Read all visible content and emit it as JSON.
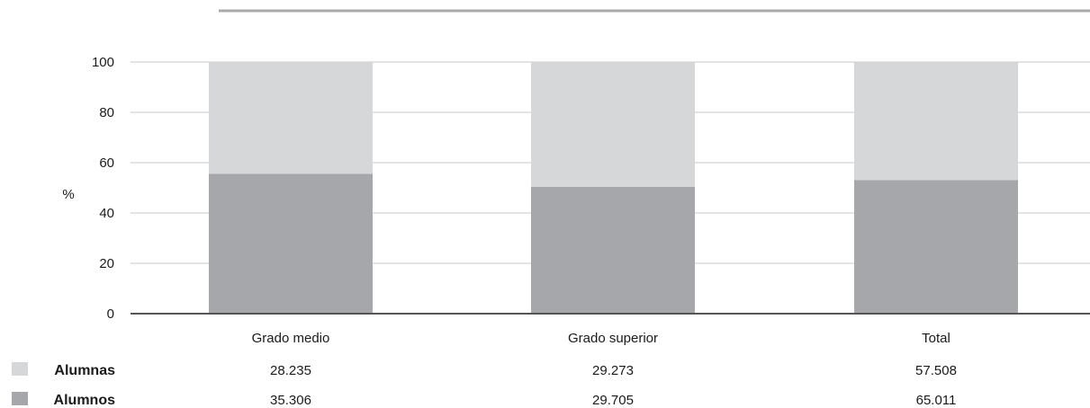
{
  "chart_data": {
    "type": "bar",
    "stacked": true,
    "categories": [
      "Grado medio",
      "Grado superior",
      "Total"
    ],
    "series": [
      {
        "name": "Alumnos",
        "values": [
          55.6,
          50.4,
          53.1
        ],
        "counts": [
          "35.306",
          "29.705",
          "65.011"
        ],
        "color": "#a6a7aa"
      },
      {
        "name": "Alumnas",
        "values": [
          44.4,
          49.6,
          46.9
        ],
        "counts": [
          "28.235",
          "29.273",
          "57.508"
        ],
        "color": "#d6d7d9"
      }
    ],
    "ylabel": "%",
    "ylim": [
      0,
      100
    ],
    "yticks": [
      "0",
      "20",
      "40",
      "60",
      "80",
      "100"
    ],
    "grid": true,
    "legend": "bottom-left table",
    "colors": {
      "grid": "#c8c8c8",
      "axis": "#555555",
      "top_rule": "#aaaaaa"
    }
  }
}
